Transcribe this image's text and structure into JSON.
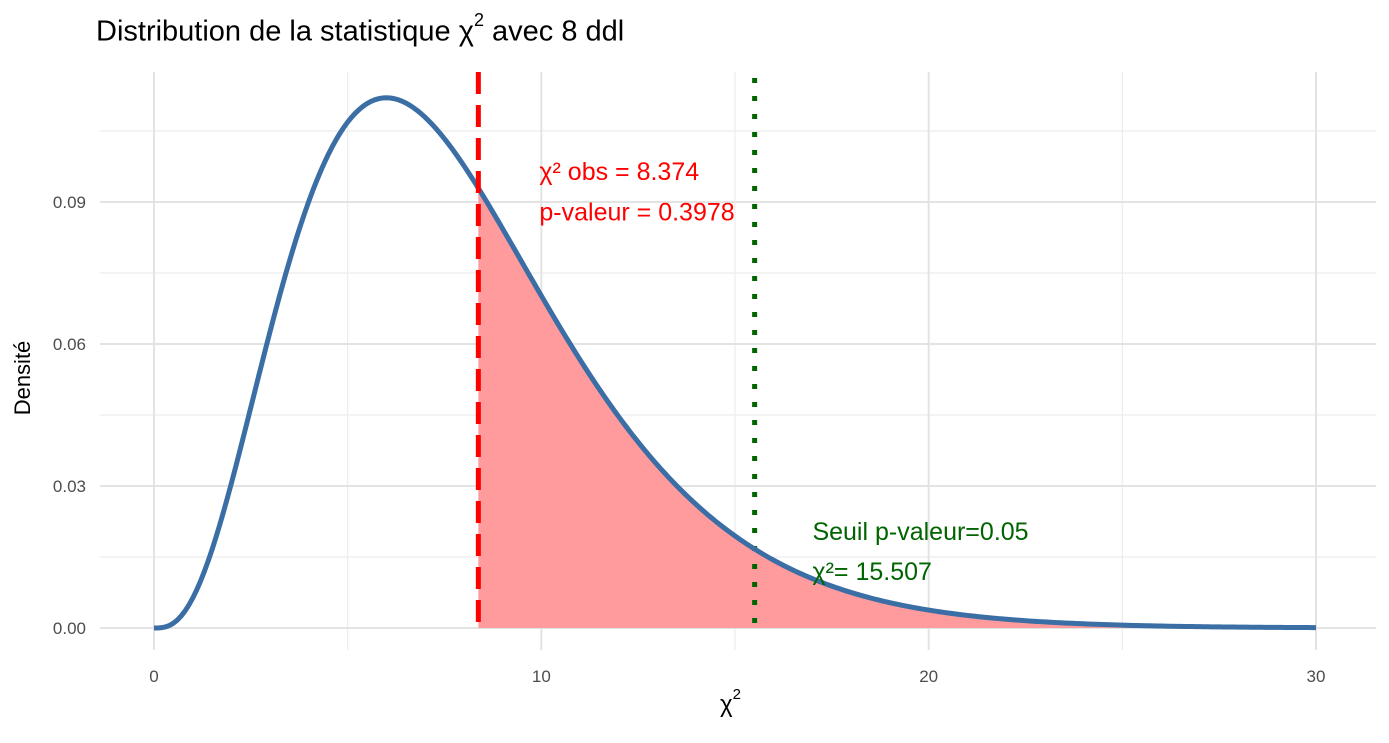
{
  "chart_data": {
    "type": "area",
    "title": {
      "prefix": "Distribution de la statistique",
      "symbol": "χ",
      "superscript": "2",
      "middle": "avec",
      "df": "8",
      "suffix": "ddl"
    },
    "xlabel": {
      "symbol": "χ",
      "superscript": "2"
    },
    "ylabel": "Densité",
    "df": 8,
    "xlim": [
      0,
      30
    ],
    "ylim": [
      0,
      0.11
    ],
    "x_ticks": [
      0,
      10,
      20,
      30
    ],
    "x_tick_labels": [
      "0",
      "10",
      "20",
      "30"
    ],
    "y_ticks": [
      0,
      0.03,
      0.06,
      0.09
    ],
    "y_tick_labels": [
      "0.00",
      "0.03",
      "0.06",
      "0.09"
    ],
    "grid": true,
    "legend": "none",
    "series": [
      {
        "x": [
          0,
          0.5,
          1,
          1.5,
          2,
          2.5,
          3,
          3.5,
          4,
          4.5,
          5,
          5.5,
          6,
          6.5,
          7,
          7.5,
          8,
          8.5,
          9,
          9.5,
          10,
          11,
          12,
          13,
          14,
          15,
          16,
          17,
          18,
          19,
          20,
          21,
          22,
          23,
          24,
          25,
          26,
          27,
          28,
          29,
          30
        ],
        "y": [
          0,
          0.0016,
          0.0079,
          0.019,
          0.0337,
          0.0501,
          0.0669,
          0.0826,
          0.0902,
          0.0988,
          0.1057,
          0.1103,
          0.112,
          0.111,
          0.1082,
          0.1046,
          0.0977,
          0.0911,
          0.0842,
          0.0774,
          0.0733,
          0.0612,
          0.0504,
          0.041,
          0.0331,
          0.0263,
          0.0209,
          0.0163,
          0.0127,
          0.0098,
          0.0076,
          0.0058,
          0.0044,
          0.0033,
          0.0025,
          0.0019,
          0.0014,
          0.001,
          0.0008,
          0.0006,
          0.0004
        ]
      }
    ],
    "observed": {
      "value": 8.374,
      "label_stat": "χ² obs = 8.374",
      "label_p": "p-valeur = 0.3978",
      "color": "#ff0000",
      "shade_color": "#ff9b9d"
    },
    "critical": {
      "value": 15.507,
      "label_seuil": "Seuil p-valeur=0.05",
      "label_stat": "χ²= 15.507",
      "color": "#006400"
    },
    "curve_color": "#3a6ea5"
  }
}
